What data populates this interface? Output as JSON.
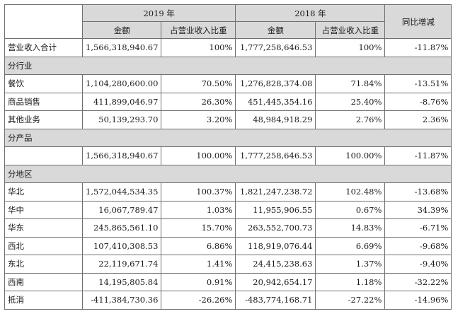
{
  "header": {
    "year_2019": "2019 年",
    "year_2018": "2018 年",
    "yoy": "同比增减",
    "amount_2019": "金额",
    "share_2019": "占营业收入比重",
    "amount_2018": "金额",
    "share_2018": "占营业收入比重"
  },
  "total_row": {
    "label": "营业收入合计",
    "amount_2019": "1,566,318,940.67",
    "share_2019": "100%",
    "amount_2018": "1,777,258,646.53",
    "share_2018": "100%",
    "yoy": "-11.87%"
  },
  "sections": {
    "industry": {
      "title": "分行业",
      "rows": [
        {
          "label": "餐饮",
          "amount_2019": "1,104,280,600.00",
          "share_2019": "70.50%",
          "amount_2018": "1,276,828,374.08",
          "share_2018": "71.84%",
          "yoy": "-13.51%"
        },
        {
          "label": "商品销售",
          "amount_2019": "411,899,046.97",
          "share_2019": "26.30%",
          "amount_2018": "451,445,354.16",
          "share_2018": "25.40%",
          "yoy": "-8.76%"
        },
        {
          "label": "其他业务",
          "amount_2019": "50,139,293.70",
          "share_2019": "3.20%",
          "amount_2018": "48,984,918.29",
          "share_2018": "2.76%",
          "yoy": "2.36%"
        }
      ]
    },
    "product": {
      "title": "分产品",
      "rows": [
        {
          "label": "",
          "amount_2019": "1,566,318,940.67",
          "share_2019": "100.00%",
          "amount_2018": "1,777,258,646.53",
          "share_2018": "100.00%",
          "yoy": "-11.87%"
        }
      ]
    },
    "region": {
      "title": "分地区",
      "rows": [
        {
          "label": "华北",
          "amount_2019": "1,572,044,534.35",
          "share_2019": "100.37%",
          "amount_2018": "1,821,247,238.72",
          "share_2018": "102.48%",
          "yoy": "-13.68%"
        },
        {
          "label": "华中",
          "amount_2019": "16,067,789.47",
          "share_2019": "1.03%",
          "amount_2018": "11,955,906.55",
          "share_2018": "0.67%",
          "yoy": "34.39%"
        },
        {
          "label": "华东",
          "amount_2019": "245,865,561.10",
          "share_2019": "15.70%",
          "amount_2018": "263,552,700.73",
          "share_2018": "14.83%",
          "yoy": "-6.71%"
        },
        {
          "label": "西北",
          "amount_2019": "107,410,308.53",
          "share_2019": "6.86%",
          "amount_2018": "118,919,076.44",
          "share_2018": "6.69%",
          "yoy": "-9.68%"
        },
        {
          "label": "东北",
          "amount_2019": "22,119,671.74",
          "share_2019": "1.41%",
          "amount_2018": "24,415,238.63",
          "share_2018": "1.37%",
          "yoy": "-9.40%"
        },
        {
          "label": "西南",
          "amount_2019": "14,195,805.84",
          "share_2019": "0.91%",
          "amount_2018": "20,942,654.17",
          "share_2018": "1.18%",
          "yoy": "-32.22%"
        },
        {
          "label": "抵消",
          "amount_2019": "-411,384,730.36",
          "share_2019": "-26.26%",
          "amount_2018": "-483,774,168.71",
          "share_2018": "-27.22%",
          "yoy": "-14.96%"
        }
      ]
    }
  },
  "colors": {
    "header_bg": "#d9d9d9",
    "border": "#6f6f6f",
    "text": "#1a1a1a"
  }
}
